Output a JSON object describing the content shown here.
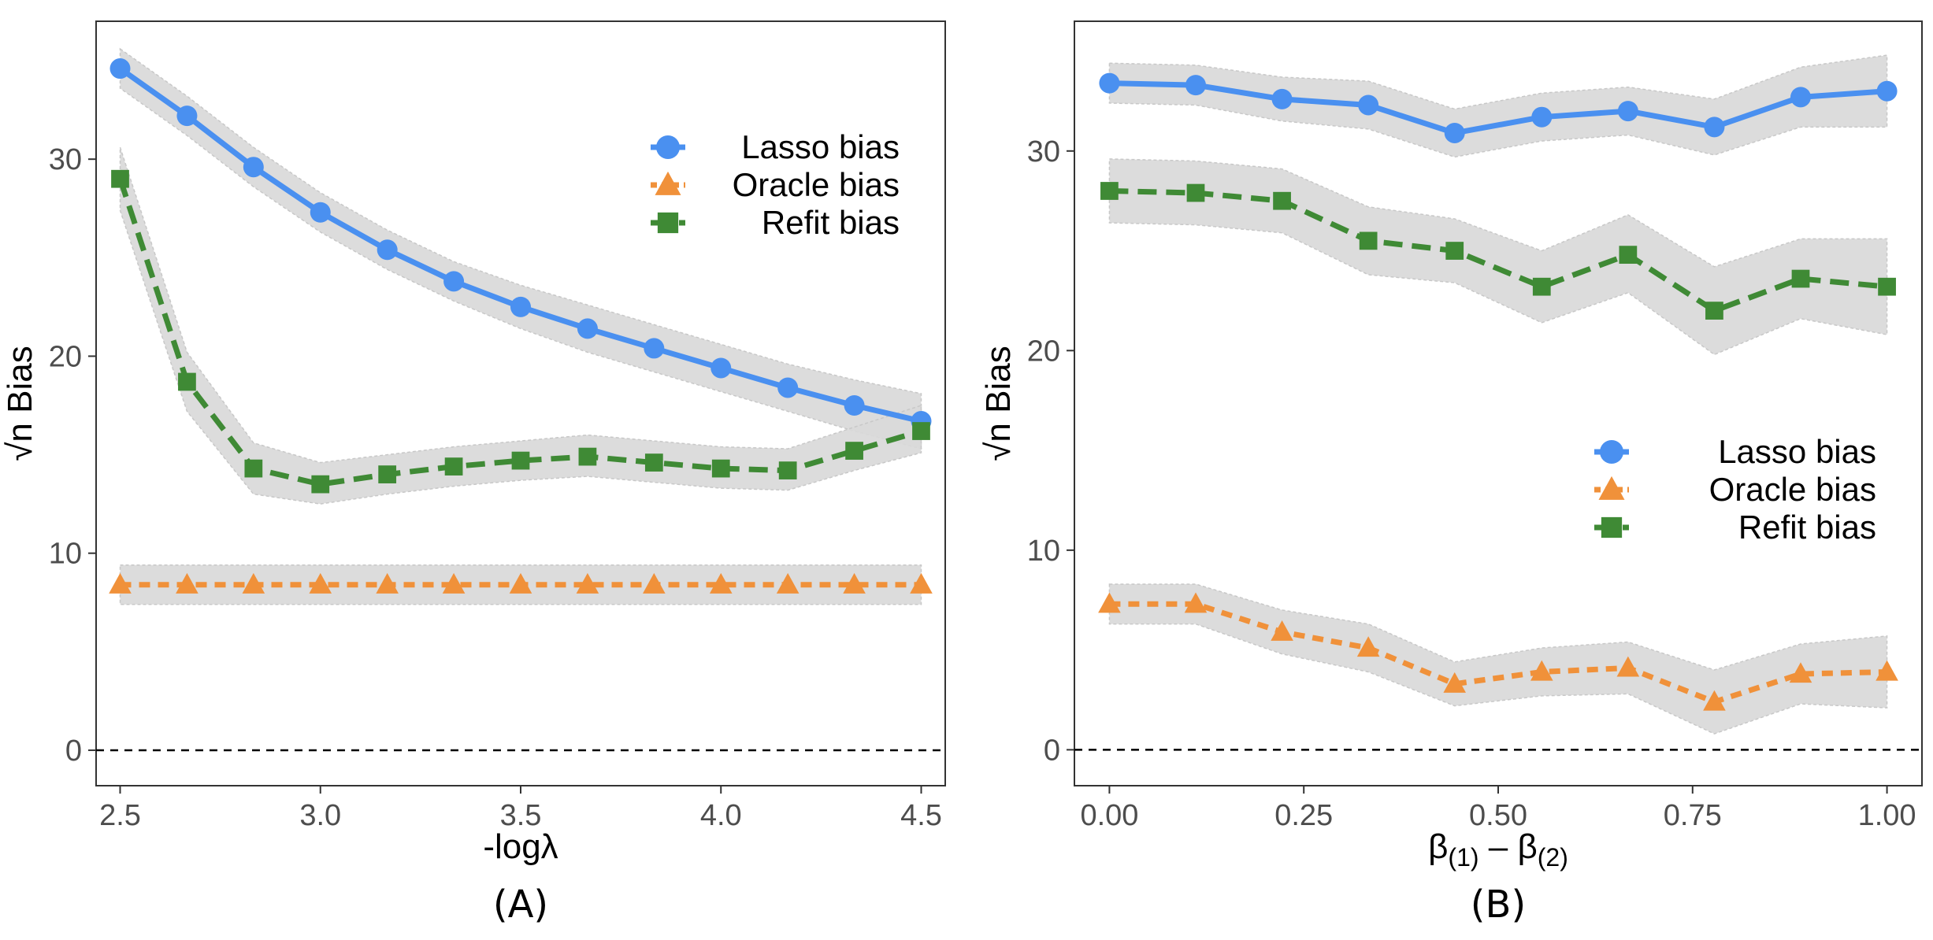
{
  "chart_data": [
    {
      "type": "line",
      "panel_label": "(A)",
      "xlabel": "-logλ",
      "ylabel_root": "√n",
      "ylabel_text": " Bias",
      "xlim": [
        2.44,
        4.56
      ],
      "ylim": [
        -1.8,
        37
      ],
      "xticks": [
        2.5,
        3.0,
        3.5,
        4.0,
        4.5
      ],
      "xtick_labels": [
        "2.5",
        "3.0",
        "3.5",
        "4.0",
        "4.5"
      ],
      "yticks": [
        0,
        10,
        20,
        30
      ],
      "ytick_labels": [
        "0",
        "10",
        "20",
        "30"
      ],
      "hline": 0,
      "legend_position": "top-right",
      "x": [
        2.5,
        2.667,
        2.833,
        3.0,
        3.167,
        3.333,
        3.5,
        3.667,
        3.833,
        4.0,
        4.167,
        4.333,
        4.5
      ],
      "series": [
        {
          "name": "Lasso bias",
          "color": "#4a90f0",
          "marker": "circle",
          "line": "solid",
          "values": [
            34.6,
            32.2,
            29.6,
            27.3,
            25.4,
            23.8,
            22.5,
            21.4,
            20.4,
            19.4,
            18.4,
            17.5,
            16.7
          ],
          "lower": [
            33.6,
            31.2,
            28.6,
            26.3,
            24.4,
            22.8,
            21.4,
            20.2,
            19.2,
            18.2,
            17.2,
            16.2,
            15.3
          ],
          "upper": [
            35.6,
            33.2,
            30.6,
            28.3,
            26.4,
            24.8,
            23.6,
            22.6,
            21.6,
            20.6,
            19.6,
            18.8,
            18.1
          ]
        },
        {
          "name": "Oracle bias",
          "color": "#f0913a",
          "marker": "triangle",
          "line": "dotted",
          "values": [
            8.4,
            8.4,
            8.4,
            8.4,
            8.4,
            8.4,
            8.4,
            8.4,
            8.4,
            8.4,
            8.4,
            8.4,
            8.4
          ],
          "lower": [
            7.4,
            7.4,
            7.4,
            7.4,
            7.4,
            7.4,
            7.4,
            7.4,
            7.4,
            7.4,
            7.4,
            7.4,
            7.4
          ],
          "upper": [
            9.4,
            9.4,
            9.4,
            9.4,
            9.4,
            9.4,
            9.4,
            9.4,
            9.4,
            9.4,
            9.4,
            9.4,
            9.4
          ]
        },
        {
          "name": "Refit bias",
          "color": "#3f8a35",
          "marker": "square",
          "line": "dashed",
          "values": [
            29.0,
            18.7,
            14.3,
            13.5,
            14.0,
            14.4,
            14.7,
            14.9,
            14.6,
            14.3,
            14.2,
            15.2,
            16.2
          ],
          "lower": [
            27.4,
            17.2,
            13.0,
            12.5,
            13.0,
            13.4,
            13.7,
            13.9,
            13.6,
            13.3,
            13.2,
            14.2,
            15.1
          ],
          "upper": [
            30.6,
            20.2,
            15.6,
            14.6,
            15.0,
            15.4,
            15.7,
            16.0,
            15.7,
            15.4,
            15.3,
            16.4,
            17.5
          ]
        }
      ]
    },
    {
      "type": "line",
      "panel_label": "(B)",
      "xlabel_parts": [
        "β",
        "(1)",
        " – β",
        "(2)"
      ],
      "ylabel_root": "√n",
      "ylabel_text": " Bias",
      "xlim": [
        -0.045,
        1.045
      ],
      "ylim": [
        -1.8,
        36.5
      ],
      "xticks": [
        0.0,
        0.25,
        0.5,
        0.75,
        1.0
      ],
      "xtick_labels": [
        "0.00",
        "0.25",
        "0.50",
        "0.75",
        "1.00"
      ],
      "yticks": [
        0,
        10,
        20,
        30
      ],
      "ytick_labels": [
        "0",
        "10",
        "20",
        "30"
      ],
      "hline": 0,
      "legend_position": "center-right",
      "x": [
        0.0,
        0.111,
        0.222,
        0.333,
        0.444,
        0.556,
        0.667,
        0.778,
        0.889,
        1.0
      ],
      "series": [
        {
          "name": "Lasso bias",
          "color": "#4a90f0",
          "marker": "circle",
          "line": "solid",
          "values": [
            33.4,
            33.3,
            32.6,
            32.3,
            30.9,
            31.7,
            32.0,
            31.2,
            32.7,
            33.0
          ],
          "lower": [
            32.4,
            32.3,
            31.5,
            31.1,
            29.7,
            30.5,
            30.8,
            29.8,
            31.2,
            31.2
          ],
          "upper": [
            34.4,
            34.3,
            33.7,
            33.5,
            32.1,
            32.9,
            33.2,
            32.6,
            34.2,
            34.8
          ]
        },
        {
          "name": "Oracle bias",
          "color": "#f0913a",
          "marker": "triangle",
          "line": "dotted",
          "values": [
            7.3,
            7.3,
            5.9,
            5.1,
            3.3,
            3.9,
            4.1,
            2.4,
            3.8,
            3.9
          ],
          "lower": [
            6.3,
            6.3,
            4.8,
            3.9,
            2.2,
            2.7,
            2.8,
            0.8,
            2.3,
            2.1
          ],
          "upper": [
            8.3,
            8.3,
            7.0,
            6.3,
            4.4,
            5.1,
            5.4,
            4.0,
            5.3,
            5.7
          ]
        },
        {
          "name": "Refit bias",
          "color": "#3f8a35",
          "marker": "square",
          "line": "dashed",
          "values": [
            28.0,
            27.9,
            27.5,
            25.5,
            25.0,
            23.2,
            24.8,
            22.0,
            23.6,
            23.2
          ],
          "lower": [
            26.4,
            26.3,
            25.9,
            23.8,
            23.4,
            21.4,
            22.9,
            19.8,
            21.6,
            20.8
          ],
          "upper": [
            29.6,
            29.5,
            29.1,
            27.2,
            26.6,
            25.0,
            26.8,
            24.2,
            25.6,
            25.6
          ]
        }
      ]
    }
  ]
}
